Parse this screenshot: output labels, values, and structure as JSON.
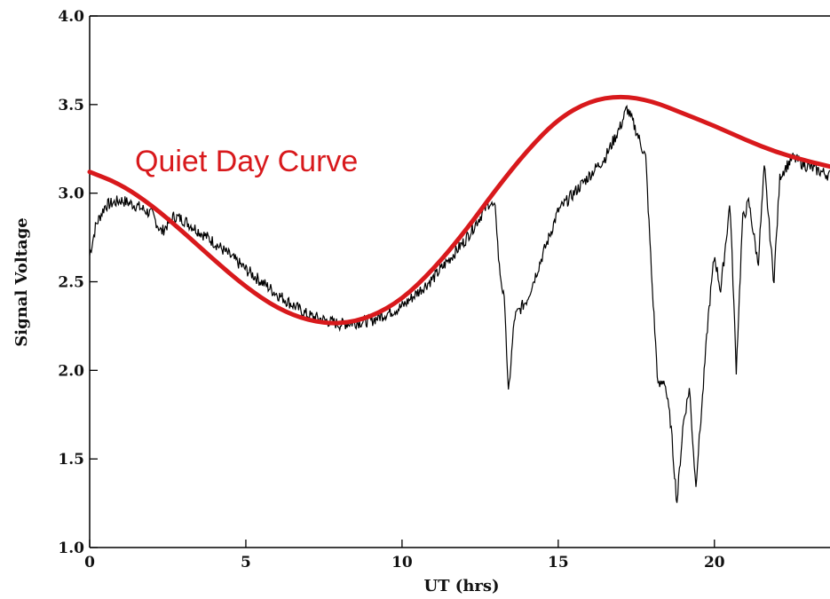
{
  "chart_data": {
    "type": "line",
    "title": "",
    "xlabel": "UT (hrs)",
    "ylabel": "Signal Voltage",
    "xlim": [
      0,
      23.7
    ],
    "ylim": [
      1.0,
      4.0
    ],
    "x_ticks": [
      0,
      5,
      10,
      15,
      20
    ],
    "x_tick_labels": [
      "0",
      "5",
      "10",
      "15",
      "20"
    ],
    "y_ticks": [
      1.0,
      1.5,
      2.0,
      2.5,
      3.0,
      3.5,
      4.0
    ],
    "y_tick_labels": [
      "1.0",
      "1.5",
      "2.0",
      "2.5",
      "3.0",
      "3.5",
      "4.0"
    ],
    "grid": false,
    "annotation": "Quiet Day Curve",
    "colors": {
      "quiet_curve": "#d8191c",
      "signal": "#000000",
      "annotation": "#d8191c"
    },
    "series": [
      {
        "x": [
          0,
          0.2,
          0.5,
          1.0,
          1.5,
          2.0,
          2.3,
          2.7,
          3.0,
          4.0,
          5.0,
          6.0,
          7.0,
          8.0,
          9.0,
          10.0,
          11.0,
          12.0,
          12.8,
          13.0,
          13.1,
          13.3,
          13.4,
          13.6,
          14.0,
          14.5,
          15.0,
          15.5,
          16.0,
          16.5,
          17.0,
          17.2,
          17.5,
          17.8,
          18.0,
          18.2,
          18.4,
          18.6,
          18.8,
          19.0,
          19.2,
          19.4,
          19.6,
          19.8,
          20.0,
          20.2,
          20.5,
          20.7,
          20.9,
          21.1,
          21.4,
          21.6,
          21.9,
          22.1,
          22.5,
          23.0,
          23.7
        ],
        "values": [
          2.65,
          2.82,
          2.93,
          2.96,
          2.93,
          2.88,
          2.78,
          2.87,
          2.85,
          2.72,
          2.57,
          2.43,
          2.31,
          2.26,
          2.28,
          2.36,
          2.52,
          2.73,
          2.95,
          2.9,
          2.6,
          2.35,
          1.85,
          2.3,
          2.4,
          2.65,
          2.9,
          3.0,
          3.1,
          3.2,
          3.38,
          3.48,
          3.35,
          3.2,
          2.5,
          1.9,
          1.95,
          1.7,
          1.25,
          1.7,
          1.9,
          1.35,
          1.8,
          2.3,
          2.65,
          2.45,
          2.95,
          2.0,
          2.85,
          2.95,
          2.6,
          3.15,
          2.5,
          3.1,
          3.2,
          3.15,
          3.1
        ]
      },
      {
        "name": "Quiet Day Curve",
        "x": [
          0,
          1,
          2,
          3,
          4,
          5,
          6,
          7,
          8,
          9,
          10,
          11,
          12,
          13,
          14,
          15,
          16,
          17,
          18,
          19,
          20,
          21,
          22,
          23,
          23.7
        ],
        "values": [
          3.12,
          3.05,
          2.93,
          2.78,
          2.62,
          2.47,
          2.35,
          2.28,
          2.26,
          2.3,
          2.4,
          2.57,
          2.78,
          3.02,
          3.24,
          3.42,
          3.52,
          3.55,
          3.52,
          3.45,
          3.38,
          3.3,
          3.23,
          3.18,
          3.15
        ]
      }
    ]
  }
}
